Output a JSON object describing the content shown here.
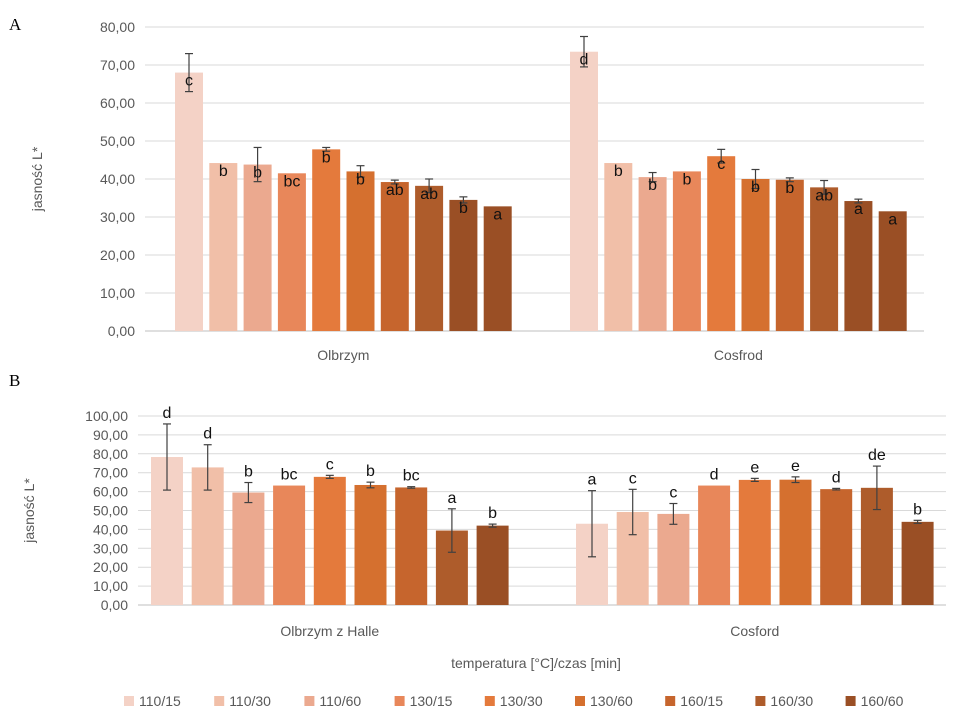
{
  "legend": [
    "110/15",
    "110/30",
    "110/60",
    "130/15",
    "130/30",
    "130/60",
    "160/15",
    "160/30",
    "160/60"
  ],
  "colors": [
    "#f4d2c6",
    "#f1bfa8",
    "#eba98f",
    "#e8875a",
    "#e47a3c",
    "#d5702f",
    "#c6652d",
    "#ae5c2b",
    "#9a4f25"
  ],
  "xlabel": "temperatura [°C]/czas [min]",
  "chart_data": [
    {
      "panel": "A",
      "type": "bar",
      "ylabel": "jasność L*",
      "ylim": [
        0,
        80
      ],
      "ticks": [
        "0,00",
        "10,00",
        "20,00",
        "30,00",
        "40,00",
        "50,00",
        "60,00",
        "70,00",
        "80,00"
      ],
      "grid": true,
      "categories": [
        "Olbrzym",
        "Cosfrod"
      ],
      "series": [
        {
          "name": "110/15",
          "values": [
            68.0,
            73.5
          ],
          "err": [
            5,
            4
          ],
          "labels": [
            "c",
            "d"
          ]
        },
        {
          "name": "110/30",
          "values": [
            44.2,
            44.2
          ],
          "err": [
            0,
            0
          ],
          "labels": [
            "b",
            "b"
          ]
        },
        {
          "name": "110/60",
          "values": [
            43.8,
            40.5
          ],
          "err": [
            4.5,
            1.2
          ],
          "labels": [
            "b",
            "b"
          ]
        },
        {
          "name": "130/15",
          "values": [
            41.5,
            42.0
          ],
          "err": [
            0,
            0
          ],
          "labels": [
            "bc",
            "b"
          ]
        },
        {
          "name": "130/30",
          "values": [
            47.8,
            46.0
          ],
          "err": [
            0.5,
            1.8
          ],
          "labels": [
            "b",
            "c"
          ]
        },
        {
          "name": "130/60",
          "values": [
            42.0,
            40.0
          ],
          "err": [
            1.5,
            2.5
          ],
          "labels": [
            "b",
            "b"
          ]
        },
        {
          "name": "160/15",
          "values": [
            39.2,
            39.8
          ],
          "err": [
            0.5,
            0.5
          ],
          "labels": [
            "ab",
            "b"
          ]
        },
        {
          "name": "160/30",
          "values": [
            38.2,
            37.8
          ],
          "err": [
            1.8,
            1.8
          ],
          "labels": [
            "ab",
            "ab"
          ]
        },
        {
          "name": "160/60",
          "values": [
            34.5,
            34.2
          ],
          "err": [
            0.8,
            0.5
          ],
          "labels": [
            "b",
            "a"
          ]
        },
        {
          "name": "",
          "values": [
            32.8,
            31.5
          ],
          "err": [
            0,
            0
          ],
          "labels": [
            "a",
            "a"
          ]
        }
      ]
    },
    {
      "panel": "B",
      "type": "bar",
      "ylabel": "jasność L*",
      "ylim": [
        0,
        100
      ],
      "ticks": [
        "0,00",
        "10,00",
        "20,00",
        "30,00",
        "40,00",
        "50,00",
        "60,00",
        "70,00",
        "80,00",
        "90,00",
        "100,00"
      ],
      "grid": true,
      "categories": [
        "Olbrzym z Halle",
        "Cosford"
      ],
      "series": [
        {
          "name": "110/15",
          "values": [
            78.3,
            43.0
          ],
          "err": [
            17.5,
            17.5
          ],
          "labels": [
            "d",
            "a"
          ]
        },
        {
          "name": "110/30",
          "values": [
            72.8,
            49.2
          ],
          "err": [
            12.0,
            12.0
          ],
          "labels": [
            "d",
            "c"
          ]
        },
        {
          "name": "110/60",
          "values": [
            59.5,
            48.2
          ],
          "err": [
            5.3,
            5.5
          ],
          "labels": [
            "b",
            "c"
          ]
        },
        {
          "name": "130/15",
          "values": [
            63.2,
            63.2
          ],
          "err": [
            0,
            0
          ],
          "labels": [
            "bc",
            "d"
          ]
        },
        {
          "name": "130/30",
          "values": [
            67.8,
            66.2
          ],
          "err": [
            0.8,
            0.8
          ],
          "labels": [
            "c",
            "e"
          ]
        },
        {
          "name": "130/60",
          "values": [
            63.5,
            66.3
          ],
          "err": [
            1.5,
            1.5
          ],
          "labels": [
            "b",
            "e"
          ]
        },
        {
          "name": "160/15",
          "values": [
            62.2,
            61.3
          ],
          "err": [
            0.4,
            0.4
          ],
          "labels": [
            "bc",
            "d"
          ]
        },
        {
          "name": "160/30",
          "values": [
            39.4,
            62.0
          ],
          "err": [
            11.5,
            11.5
          ],
          "labels": [
            "a",
            "de"
          ]
        },
        {
          "name": "160/60",
          "values": [
            42.0,
            44.0
          ],
          "err": [
            0.8,
            0.8
          ],
          "labels": [
            "b",
            "b"
          ]
        }
      ]
    }
  ]
}
